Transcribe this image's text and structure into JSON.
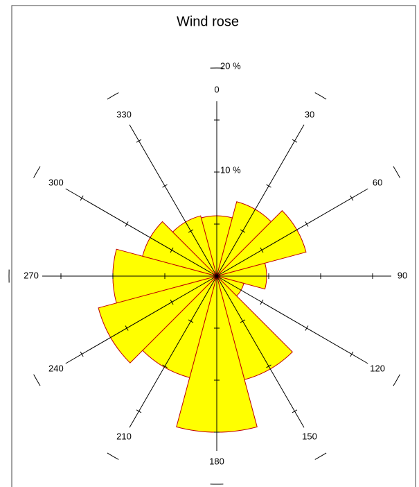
{
  "chart_data": {
    "type": "polar_bar",
    "title": "Wind rose",
    "categories": [
      "0",
      "30",
      "60",
      "90",
      "120",
      "150",
      "180",
      "210",
      "240",
      "270",
      "300",
      "330"
    ],
    "values": [
      5.8,
      7.4,
      8.9,
      4.8,
      2.7,
      10.3,
      15,
      10.1,
      11.8,
      10,
      7.4,
      6
    ],
    "color": "#ffff00",
    "edge_color": "#c00000",
    "rlim": [
      0,
      20
    ],
    "rticks": [
      {
        "value": 10,
        "label": "10 %"
      },
      {
        "value": 20,
        "label": "20 %"
      }
    ],
    "minor_rticks": [
      5,
      15
    ]
  }
}
